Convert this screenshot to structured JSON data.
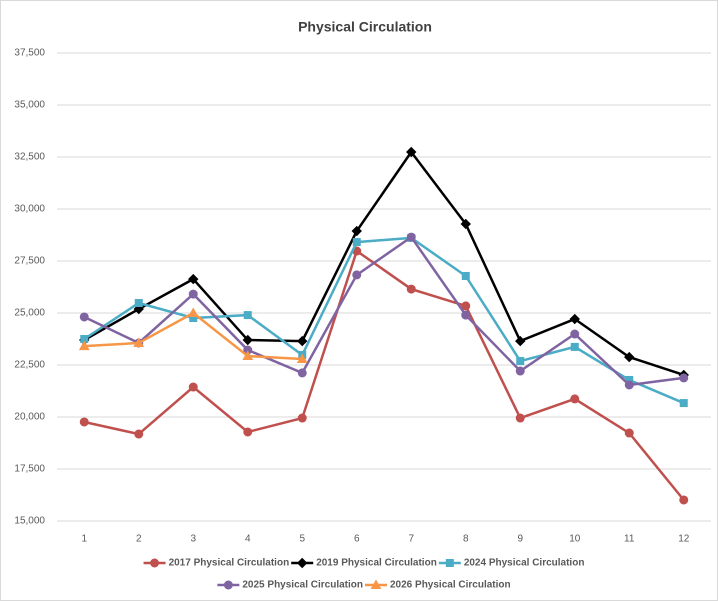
{
  "chart_data": {
    "type": "line",
    "title": "Physical Circulation",
    "categories": [
      "1",
      "2",
      "3",
      "4",
      "5",
      "6",
      "7",
      "8",
      "9",
      "10",
      "11",
      "12"
    ],
    "ylim": [
      15000,
      37500
    ],
    "yticks": [
      {
        "value": 15000,
        "label": "15,000"
      },
      {
        "value": 17500,
        "label": "17,500"
      },
      {
        "value": 20000,
        "label": "20,000"
      },
      {
        "value": 22500,
        "label": "22,500"
      },
      {
        "value": 25000,
        "label": "25,000"
      },
      {
        "value": 27500,
        "label": "27,500"
      },
      {
        "value": 30000,
        "label": "30,000"
      },
      {
        "value": 32500,
        "label": "32,500"
      },
      {
        "value": 35000,
        "label": "35,000"
      },
      {
        "value": 37500,
        "label": "37,500"
      }
    ],
    "grid": true,
    "legend": "bottom",
    "series": [
      {
        "name": "2017 Physical Circulation",
        "color": "#c0504d",
        "marker": "circle",
        "values": [
          19760,
          19180,
          21440,
          19280,
          19950,
          27980,
          26150,
          25340,
          19950,
          20870,
          19230,
          16010
        ]
      },
      {
        "name": "2019 Physical Circulation",
        "color": "#000000",
        "marker": "diamond",
        "values": [
          23700,
          25190,
          26630,
          23700,
          23650,
          28940,
          32740,
          29280,
          23650,
          24710,
          22880,
          22020
        ]
      },
      {
        "name": "2024 Physical Circulation",
        "color": "#4bacc6",
        "marker": "square",
        "values": [
          23750,
          25480,
          24760,
          24900,
          22980,
          28410,
          28610,
          26780,
          22690,
          23370,
          21780,
          20670
        ]
      },
      {
        "name": "2025 Physical Circulation",
        "color": "#8064a2",
        "marker": "circle",
        "values": [
          24810,
          23560,
          25910,
          23220,
          22120,
          26830,
          28650,
          24900,
          22210,
          23990,
          21540,
          21880
        ]
      },
      {
        "name": "2026 Physical Circulation",
        "color": "#f79646",
        "marker": "triangle",
        "values": [
          23410,
          23560,
          25000,
          22930,
          22790,
          null,
          null,
          null,
          null,
          null,
          null,
          null
        ]
      }
    ]
  }
}
